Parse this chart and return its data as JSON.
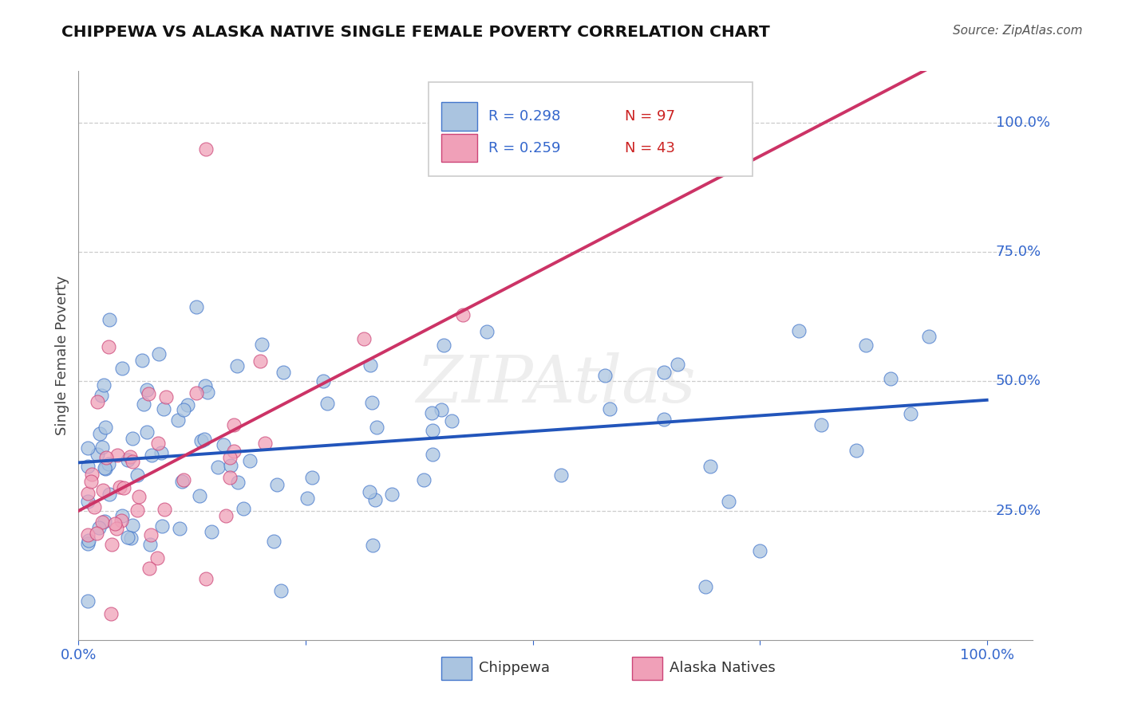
{
  "title": "CHIPPEWA VS ALASKA NATIVE SINGLE FEMALE POVERTY CORRELATION CHART",
  "source": "Source: ZipAtlas.com",
  "ylabel": "Single Female Poverty",
  "xlim": [
    0.0,
    1.05
  ],
  "ylim": [
    0.0,
    1.1
  ],
  "legend_r1": "R = 0.298",
  "legend_n1": "N = 97",
  "legend_r2": "R = 0.259",
  "legend_n2": "N = 43",
  "blue_face_color": "#aac4e0",
  "blue_edge_color": "#4477cc",
  "pink_face_color": "#f0a0b8",
  "pink_edge_color": "#cc4477",
  "blue_line_color": "#2255bb",
  "pink_line_color": "#cc3366",
  "watermark": "ZIPAtlas",
  "background_color": "#ffffff",
  "grid_color": "#cccccc",
  "ytick_positions": [
    0.25,
    0.5,
    0.75,
    1.0
  ],
  "ytick_labels": [
    "25.0%",
    "50.0%",
    "75.0%",
    "100.0%"
  ],
  "legend_label1": "Chippewa",
  "legend_label2": "Alaska Natives"
}
